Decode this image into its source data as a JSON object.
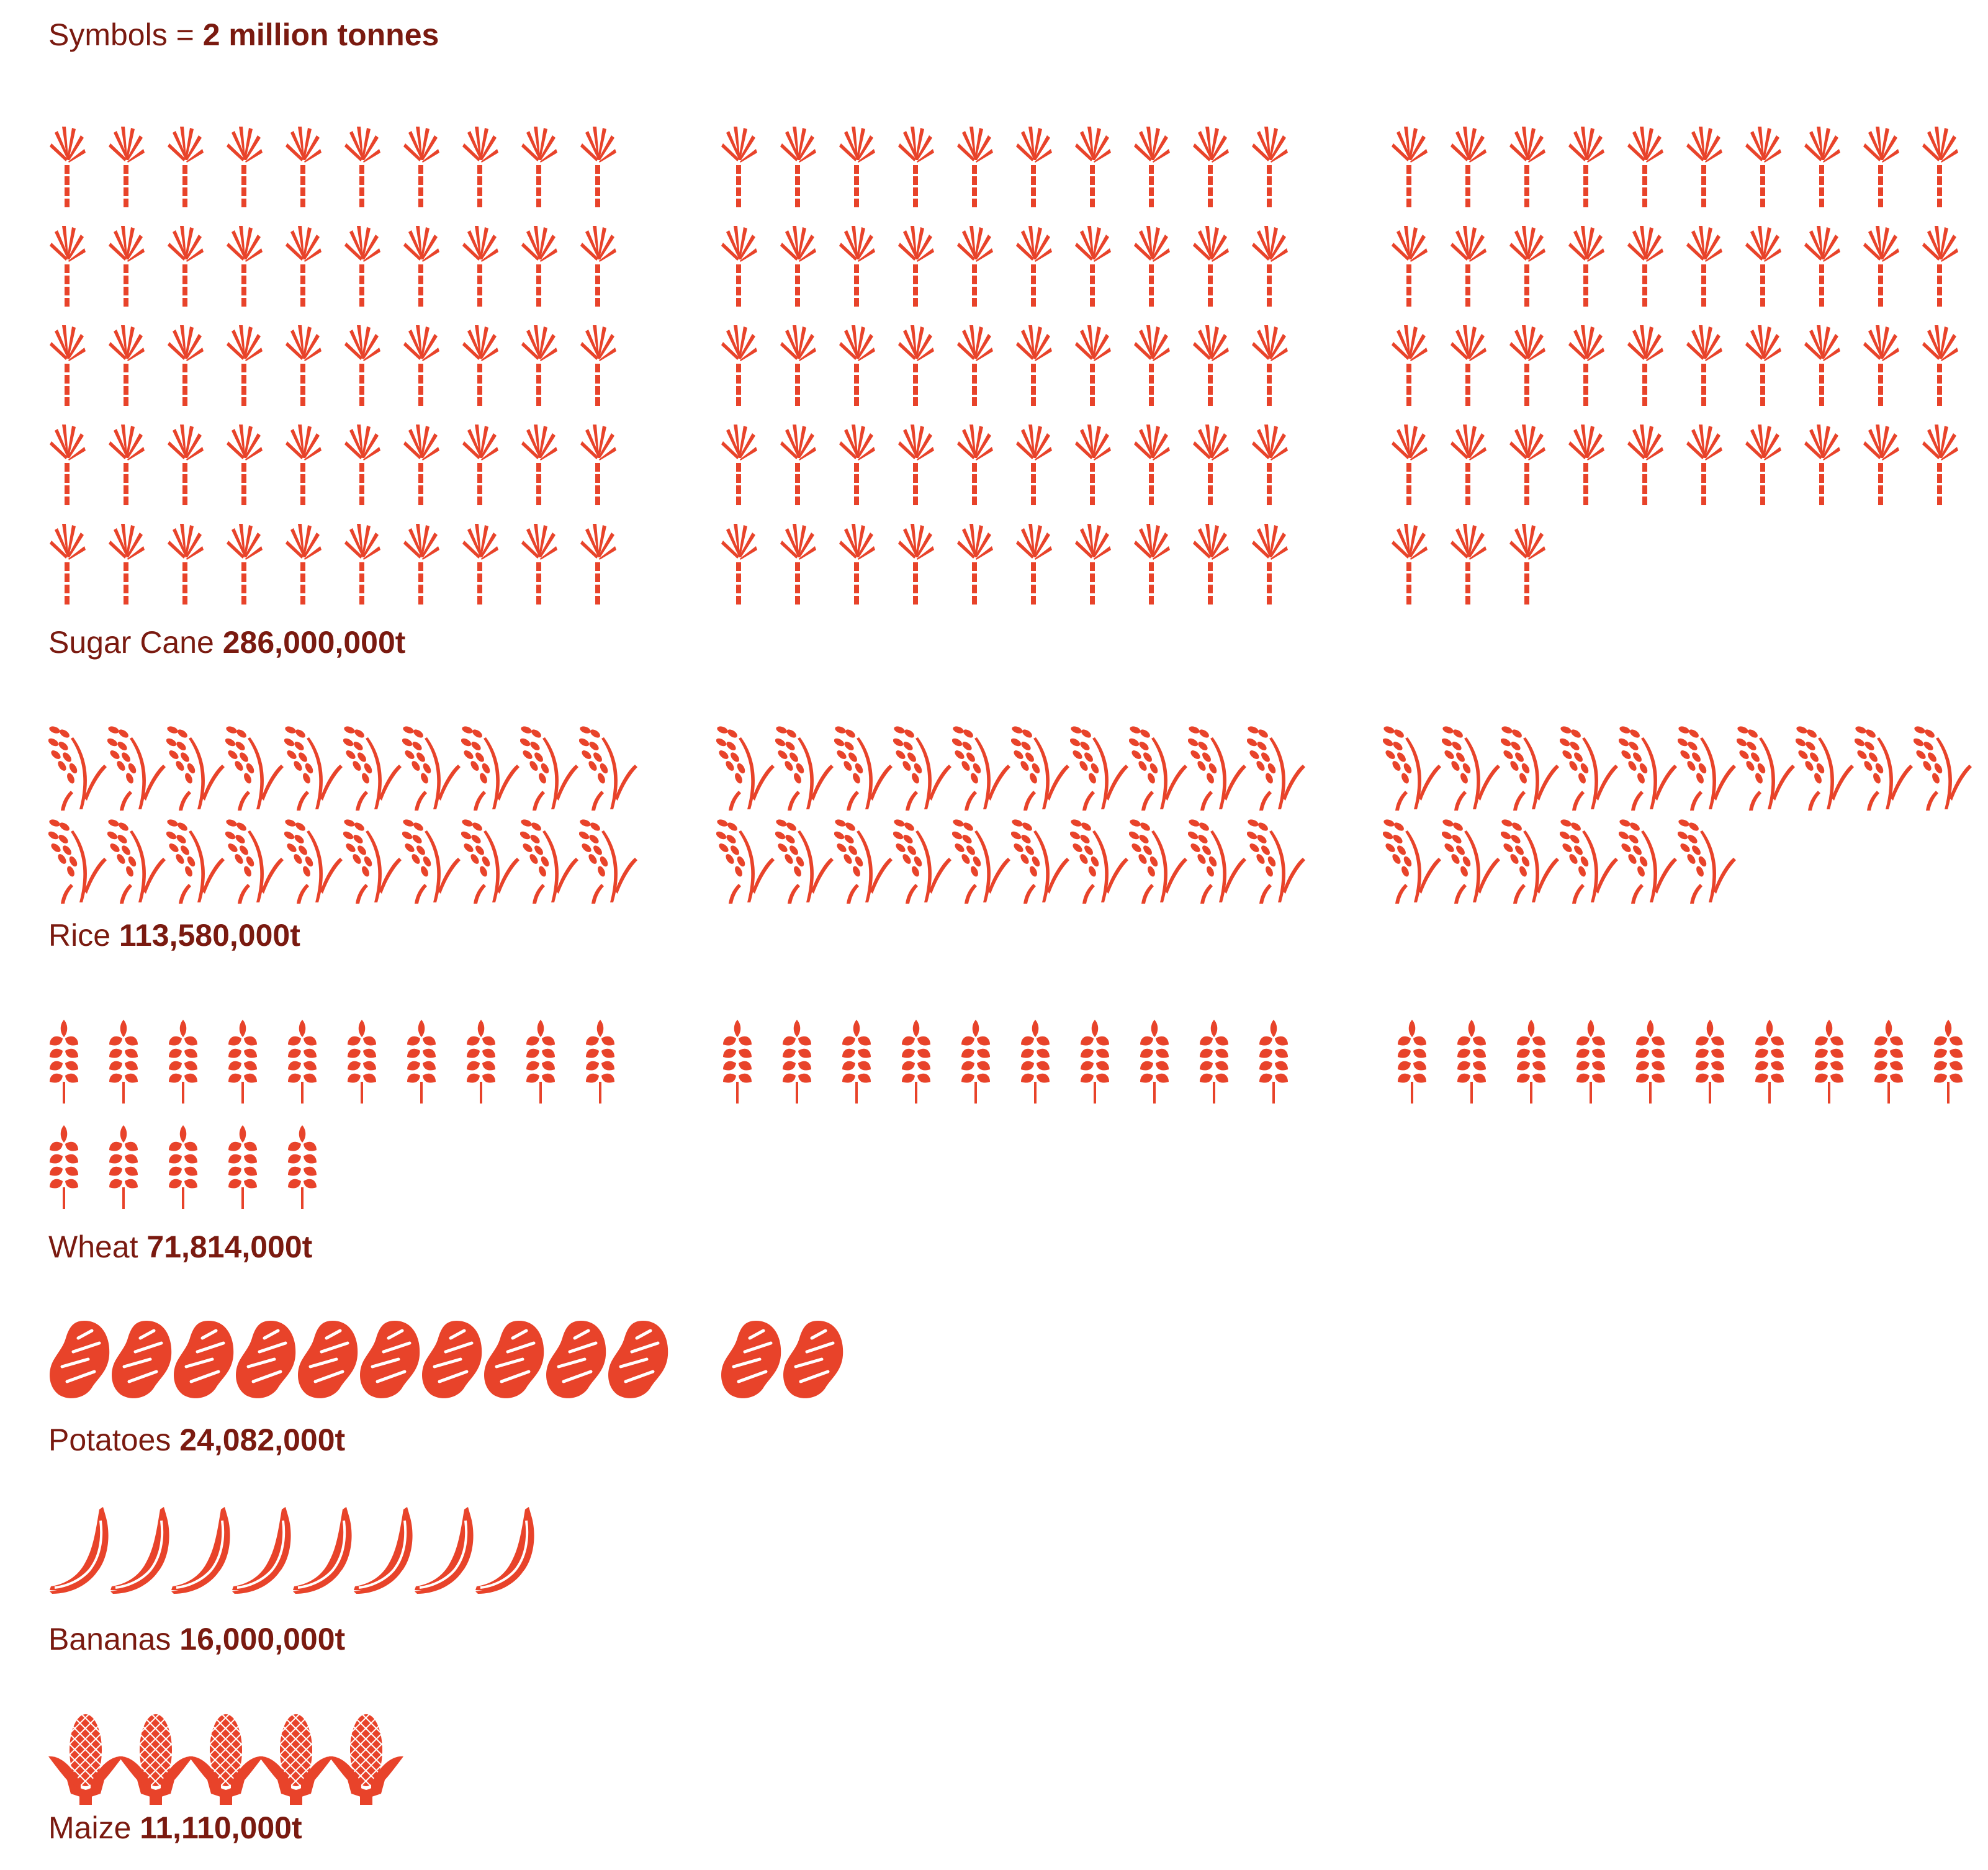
{
  "legend": {
    "prefix": "Symbols =",
    "unit": "2 million tonnes"
  },
  "colors": {
    "icon": "#e8432a",
    "text": "#7a1a10",
    "background": "#ffffff"
  },
  "chart_data": {
    "type": "pictogram",
    "unit_per_symbol_tonnes": 2000000,
    "categories": [
      "Sugar Cane",
      "Rice",
      "Wheat",
      "Potatoes",
      "Bananas",
      "Maize"
    ],
    "values": [
      286000000,
      113580000,
      71814000,
      24082000,
      16000000,
      11110000
    ],
    "items": [
      {
        "name": "Sugar Cane",
        "icon": "sugar-cane-icon",
        "value": 286000000,
        "value_label": "286,000,000t",
        "symbols": 143
      },
      {
        "name": "Rice",
        "icon": "rice-icon",
        "value": 113580000,
        "value_label": "113,580,000t",
        "symbols": 57
      },
      {
        "name": "Wheat",
        "icon": "wheat-icon",
        "value": 71814000,
        "value_label": "71,814,000t",
        "symbols": 36
      },
      {
        "name": "Potatoes",
        "icon": "potato-icon",
        "value": 24082000,
        "value_label": "24,082,000t",
        "symbols": 12
      },
      {
        "name": "Bananas",
        "icon": "banana-icon",
        "value": 16000000,
        "value_label": "16,000,000t",
        "symbols": 8
      },
      {
        "name": "Maize",
        "icon": "maize-icon",
        "value": 11110000,
        "value_label": "11,110,000t",
        "symbols": 5.555
      }
    ]
  }
}
